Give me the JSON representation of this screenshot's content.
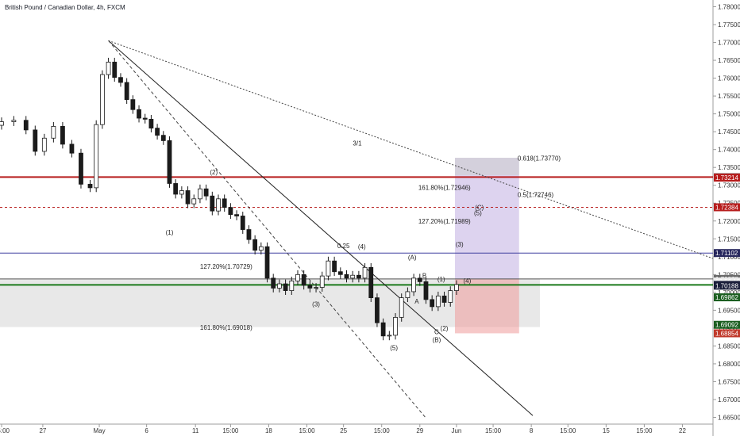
{
  "chart_data": {
    "type": "candlestick",
    "title": "British Pound / Canadian Dollar, 4h, FXCM",
    "ylim": [
      1.664,
      1.781
    ],
    "y_ticks": [
      "1.78000",
      "1.77500",
      "1.77000",
      "1.76500",
      "1.76000",
      "1.75500",
      "1.75000",
      "1.74500",
      "1.74000",
      "1.73500",
      "1.73000",
      "1.72500",
      "1.72000",
      "1.71500",
      "1.71000",
      "1.70500",
      "1.70000",
      "1.69500",
      "1.69000",
      "1.68500",
      "1.68000",
      "1.67500",
      "1.67000",
      "1.66500"
    ],
    "x_ticks": [
      {
        "label": "15:00",
        "t": 0
      },
      {
        "label": "27",
        "t": 27
      },
      {
        "label": "May",
        "t": 64
      },
      {
        "label": "6",
        "t": 95
      },
      {
        "label": "11",
        "t": 127
      },
      {
        "label": "15:00",
        "t": 150
      },
      {
        "label": "18",
        "t": 175
      },
      {
        "label": "15:00",
        "t": 200
      },
      {
        "label": "25",
        "t": 224
      },
      {
        "label": "15:00",
        "t": 249
      },
      {
        "label": "29",
        "t": 274
      },
      {
        "label": "Jun",
        "t": 298
      },
      {
        "label": "15:00",
        "t": 322
      },
      {
        "label": "8",
        "t": 347
      },
      {
        "label": "15:00",
        "t": 371
      },
      {
        "label": "15",
        "t": 396
      },
      {
        "label": "15:00",
        "t": 421
      },
      {
        "label": "22",
        "t": 446
      }
    ],
    "x_range": [
      0,
      465
    ],
    "candles": [
      {
        "t": 0,
        "c": 1.7478
      },
      {
        "t": 8,
        "c": 1.7482
      },
      {
        "t": 16,
        "c": 1.7455
      },
      {
        "t": 22,
        "c": 1.7395
      },
      {
        "t": 28,
        "c": 1.7432
      },
      {
        "t": 34,
        "c": 1.7465
      },
      {
        "t": 40,
        "c": 1.7415
      },
      {
        "t": 46,
        "c": 1.739
      },
      {
        "t": 52,
        "c": 1.7303
      },
      {
        "t": 58,
        "c": 1.7293
      },
      {
        "t": 62,
        "c": 1.747
      },
      {
        "t": 66,
        "c": 1.761
      },
      {
        "t": 70,
        "c": 1.7645
      },
      {
        "t": 74,
        "c": 1.7602
      },
      {
        "t": 78,
        "c": 1.7588
      },
      {
        "t": 82,
        "c": 1.754
      },
      {
        "t": 86,
        "c": 1.7512
      },
      {
        "t": 90,
        "c": 1.7488
      },
      {
        "t": 94,
        "c": 1.7485
      },
      {
        "t": 98,
        "c": 1.746
      },
      {
        "t": 102,
        "c": 1.744
      },
      {
        "t": 106,
        "c": 1.7425
      },
      {
        "t": 110,
        "c": 1.7305
      },
      {
        "t": 114,
        "c": 1.7275
      },
      {
        "t": 118,
        "c": 1.7285
      },
      {
        "t": 122,
        "c": 1.7248
      },
      {
        "t": 126,
        "c": 1.7262
      },
      {
        "t": 130,
        "c": 1.729
      },
      {
        "t": 134,
        "c": 1.727
      },
      {
        "t": 138,
        "c": 1.7228
      },
      {
        "t": 142,
        "c": 1.7262
      },
      {
        "t": 146,
        "c": 1.7238
      },
      {
        "t": 150,
        "c": 1.7218
      },
      {
        "t": 154,
        "c": 1.7214
      },
      {
        "t": 158,
        "c": 1.7176
      },
      {
        "t": 162,
        "c": 1.7148
      },
      {
        "t": 166,
        "c": 1.7118
      },
      {
        "t": 170,
        "c": 1.7128
      },
      {
        "t": 174,
        "c": 1.704
      },
      {
        "t": 178,
        "c": 1.7012
      },
      {
        "t": 182,
        "c": 1.7024
      },
      {
        "t": 186,
        "c": 1.7005
      },
      {
        "t": 190,
        "c": 1.7032
      },
      {
        "t": 194,
        "c": 1.705
      },
      {
        "t": 198,
        "c": 1.702
      },
      {
        "t": 202,
        "c": 1.7012
      },
      {
        "t": 206,
        "c": 1.7014
      },
      {
        "t": 210,
        "c": 1.7046
      },
      {
        "t": 214,
        "c": 1.7088
      },
      {
        "t": 218,
        "c": 1.7058
      },
      {
        "t": 222,
        "c": 1.705
      },
      {
        "t": 226,
        "c": 1.704
      },
      {
        "t": 230,
        "c": 1.7048
      },
      {
        "t": 234,
        "c": 1.704
      },
      {
        "t": 238,
        "c": 1.707
      },
      {
        "t": 242,
        "c": 1.6985
      },
      {
        "t": 246,
        "c": 1.6915
      },
      {
        "t": 250,
        "c": 1.6878
      },
      {
        "t": 254,
        "c": 1.688
      },
      {
        "t": 258,
        "c": 1.693
      },
      {
        "t": 262,
        "c": 1.6985
      },
      {
        "t": 266,
        "c": 1.7002
      },
      {
        "t": 270,
        "c": 1.704
      },
      {
        "t": 274,
        "c": 1.703
      },
      {
        "t": 278,
        "c": 1.698
      },
      {
        "t": 282,
        "c": 1.696
      },
      {
        "t": 286,
        "c": 1.699
      },
      {
        "t": 290,
        "c": 1.6972
      },
      {
        "t": 294,
        "c": 1.7005
      },
      {
        "t": 298,
        "c": 1.7022
      }
    ],
    "horizontal_levels": [
      {
        "price": 1.73229,
        "style": "solid",
        "color": "#b71c1c"
      },
      {
        "price": 1.72384,
        "style": "dashed",
        "color": "#b71c1c"
      },
      {
        "price": 1.71102,
        "style": "solid",
        "color": "#3f3f9f"
      },
      {
        "price": 1.70378,
        "style": "solid",
        "color": "#555555"
      },
      {
        "price": 1.7021,
        "style": "solid",
        "color": "#1b7a1b"
      }
    ],
    "grey_zone": [
      1.6903,
      1.7038
    ],
    "position_box": {
      "t_start": 297,
      "t_end": 339,
      "target": 1.7377,
      "entry": 1.70378,
      "stop": 1.68854
    },
    "fib_labels": [
      {
        "text": "0.618(1.73770)",
        "t": 338,
        "y": 1.7376
      },
      {
        "text": "161.80%(1.72946)",
        "t": 273,
        "y": 1.7294
      },
      {
        "text": "0.5(1.72746)",
        "t": 338,
        "y": 1.7274
      },
      {
        "text": "127.20%(1.71989)",
        "t": 273,
        "y": 1.7199
      },
      {
        "text": "127.20%(1.70729)",
        "t": 130,
        "y": 1.7073
      },
      {
        "text": "161.80%(1.69018)",
        "t": 130,
        "y": 1.6902
      }
    ],
    "wave_labels": [
      {
        "text": "(2)",
        "t": 139,
        "y": 1.7337
      },
      {
        "text": "(1)",
        "t": 110,
        "y": 1.7168
      },
      {
        "text": "(3)",
        "t": 206,
        "y": 1.6968
      },
      {
        "text": "(4)",
        "t": 236,
        "y": 1.7128
      },
      {
        "text": "(5)",
        "t": 257,
        "y": 1.6845
      },
      {
        "text": "0.25",
        "t": 224,
        "y": 1.7131
      },
      {
        "text": "(A)",
        "t": 269,
        "y": 1.7098
      },
      {
        "text": "B",
        "t": 277,
        "y": 1.7047
      },
      {
        "text": "A",
        "t": 272,
        "y": 1.6975
      },
      {
        "text": "(1)",
        "t": 288,
        "y": 1.7037
      },
      {
        "text": "(2)",
        "t": 290,
        "y": 1.69
      },
      {
        "text": "C",
        "t": 285,
        "y": 1.689
      },
      {
        "text": "(B)",
        "t": 285,
        "y": 1.6868
      },
      {
        "text": "(3)",
        "t": 300,
        "y": 1.7135
      },
      {
        "text": "(C)",
        "t": 313,
        "y": 1.7238
      },
      {
        "text": "(4)",
        "t": 305,
        "y": 1.7033
      },
      {
        "text": "(5)",
        "t": 312,
        "y": 1.7223
      },
      {
        "text": "3/1",
        "t": 233,
        "y": 1.7418
      }
    ],
    "price_labels": [
      {
        "text": "1.73229",
        "price": 1.73229,
        "color": "#b71c1c"
      },
      {
        "text": "1.73228",
        "price": 1.73228,
        "color": "#8e8e8e"
      },
      {
        "text": "1.73214",
        "price": 1.73214,
        "color": "#b71c1c"
      },
      {
        "text": "1.72384",
        "price": 1.72384,
        "color": "#b71c1c"
      },
      {
        "text": "1.71102",
        "price": 1.71102,
        "color": "#26265c"
      },
      {
        "text": "1.70378",
        "price": 1.70378,
        "color": "#6b6b6b"
      },
      {
        "text": "02:56:10",
        "price": 1.70305,
        "color": "#eeeeee",
        "fg": "#333"
      },
      {
        "text": "1.70210",
        "price": 1.7021,
        "color": "#1b1f3b"
      },
      {
        "text": "1.70188",
        "price": 1.70188,
        "color": "#1b1f3b"
      },
      {
        "text": "1.69862",
        "price": 1.69862,
        "color": "#1b5e20"
      },
      {
        "text": "1.69092",
        "price": 1.69092,
        "color": "#1b5e20"
      },
      {
        "text": "1.68854",
        "price": 1.68854,
        "color": "#c0392b"
      }
    ]
  }
}
